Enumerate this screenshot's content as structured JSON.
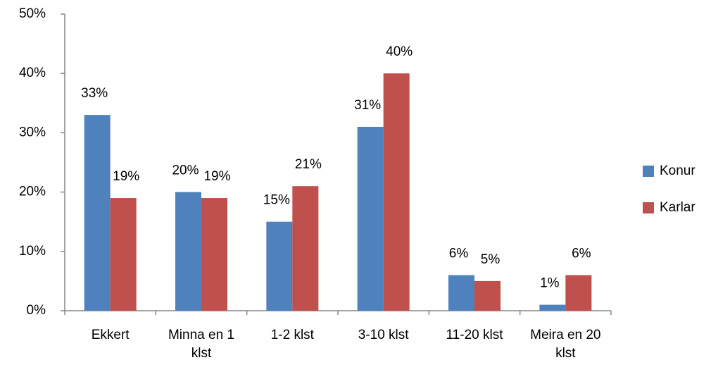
{
  "chart_data": {
    "type": "bar",
    "categories": [
      "Ekkert",
      "Minna en 1 klst",
      "1-2 klst",
      "3-10 klst",
      "11-20 klst",
      "Meira en 20 klst"
    ],
    "series": [
      {
        "name": "Konur",
        "color": "#4f81bd",
        "values": [
          33,
          20,
          15,
          31,
          6,
          1
        ],
        "value_labels": [
          "33%",
          "20%",
          "15%",
          "31%",
          "6%",
          "1%"
        ]
      },
      {
        "name": "Karlar",
        "color": "#c0504d",
        "values": [
          19,
          19,
          21,
          40,
          5,
          6
        ],
        "value_labels": [
          "19%",
          "19%",
          "21%",
          "40%",
          "5%",
          "6%"
        ]
      }
    ],
    "ylim": [
      0,
      50
    ],
    "yticks": [
      {
        "value": 0,
        "label": "0%"
      },
      {
        "value": 10,
        "label": "10%"
      },
      {
        "value": 20,
        "label": "20%"
      },
      {
        "value": 30,
        "label": "30%"
      },
      {
        "value": 40,
        "label": "40%"
      },
      {
        "value": 50,
        "label": "50%"
      }
    ],
    "legend": "right",
    "grid": false
  }
}
